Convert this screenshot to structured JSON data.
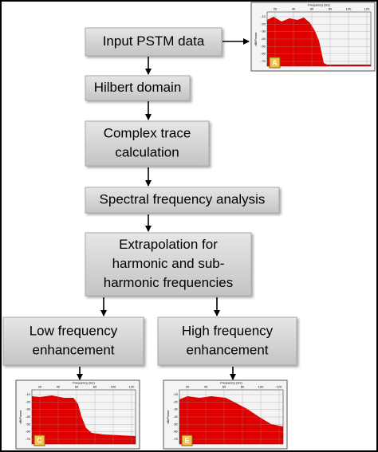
{
  "nodes": [
    {
      "lines": [
        "Input PSTM data"
      ]
    },
    {
      "lines": [
        "Hilbert domain"
      ]
    },
    {
      "lines": [
        "Complex trace",
        "calculation"
      ]
    },
    {
      "lines": [
        "Spectral frequency analysis"
      ]
    },
    {
      "lines": [
        "Extrapolation for",
        "harmonic and sub-",
        "harmonic frequencies"
      ]
    },
    {
      "lines": [
        "Low frequency",
        "enhancement"
      ]
    },
    {
      "lines": [
        "High frequency",
        "enhancement"
      ]
    }
  ],
  "thumbnails": [
    {
      "badge": "A",
      "x_axis_label": "Frequency (Hz)",
      "y_axis_label": "dB/Power",
      "x_ticks": [
        20,
        40,
        60,
        80,
        100,
        120
      ],
      "y_ticks": [
        -10,
        -20,
        -30,
        -40,
        -50,
        -60,
        -70
      ]
    },
    {
      "badge": "C",
      "x_axis_label": "Frequency (Hz)",
      "y_axis_label": "dB/Power",
      "x_ticks": [
        20,
        40,
        60,
        80,
        100,
        120
      ],
      "y_ticks": [
        -10,
        -20,
        -30,
        -40,
        -50,
        -60,
        -70
      ]
    },
    {
      "badge": "E",
      "x_axis_label": "Frequency (Hz)",
      "y_axis_label": "dB/Power",
      "x_ticks": [
        20,
        40,
        60,
        80,
        100,
        120
      ],
      "y_ticks": [
        -10,
        -20,
        -30,
        -40,
        -50,
        -60,
        -70
      ]
    }
  ]
}
